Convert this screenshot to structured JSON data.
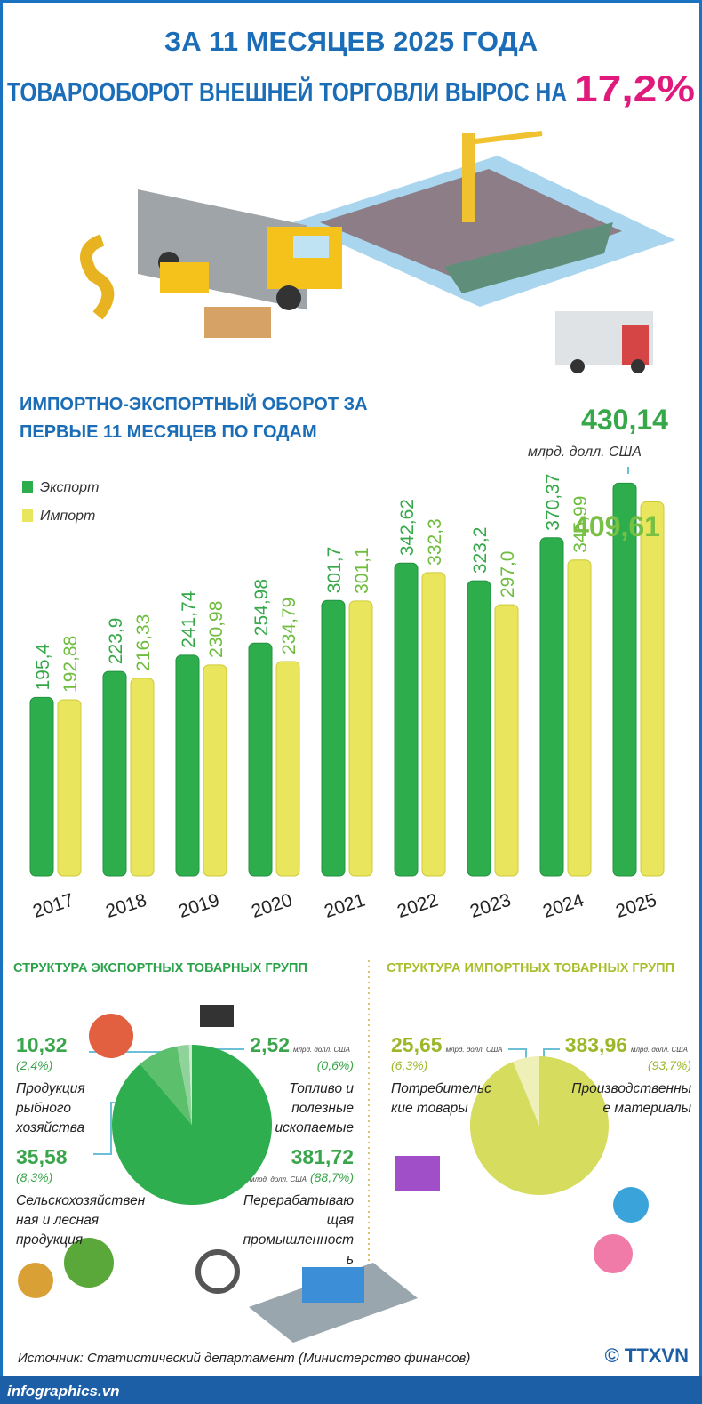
{
  "header": {
    "line1": "ЗА 11 МЕСЯЦЕВ 2025 ГОДА",
    "line2": "ТОВАРООБОРОТ ВНЕШНЕЙ ТОРГОВЛИ ВЫРОС НА",
    "highlight": "17,2%"
  },
  "chart_data": [
    {
      "type": "bar",
      "title": "ИМПОРТНО-ЭКСПОРТНЫЙ ОБОРОТ ЗА ПЕРВЫЕ 11 МЕСЯЦЕВ ПО ГОДАМ",
      "unit": "млрд. долл. США",
      "categories": [
        "2017",
        "2018",
        "2019",
        "2020",
        "2021",
        "2022",
        "2023",
        "2024",
        "2025"
      ],
      "series": [
        {
          "name": "Экспорт",
          "color": "#2ead4d",
          "values": [
            195.4,
            223.9,
            241.74,
            254.98,
            301.7,
            342.62,
            323.2,
            370.37,
            430.14
          ],
          "value_labels": [
            "195,4",
            "223,9",
            "241,74",
            "254,98",
            "301,7",
            "342,62",
            "323,2",
            "370,37",
            "430,14"
          ]
        },
        {
          "name": "Импорт",
          "color": "#e9e55c",
          "values": [
            192.88,
            216.33,
            230.98,
            234.79,
            301.1,
            332.3,
            297.0,
            345.99,
            409.61
          ],
          "value_labels": [
            "192,88",
            "216,33",
            "230,98",
            "234,79",
            "301,1",
            "332,3",
            "297,0",
            "345,99",
            "409,61"
          ]
        }
      ],
      "ylim": [
        0,
        450
      ]
    },
    {
      "type": "pie",
      "title": "СТРУКТУРА ЭКСПОРТНЫХ ТОВАРНЫХ ГРУПП",
      "unit": "млрд. долл. США",
      "categories": [
        "Перерабатывающая промышленность",
        "Сельскохозяйственная и лесная продукция",
        "Продукция рыбного хозяйства",
        "Топливо и полезные ископаемые"
      ],
      "values": [
        381.72,
        35.58,
        10.32,
        2.52
      ],
      "value_labels": [
        "381,72",
        "35,58",
        "10,32",
        "2,52"
      ],
      "percents": [
        88.7,
        8.3,
        2.4,
        0.6
      ],
      "percent_labels": [
        "(88,7%)",
        "(8,3%)",
        "(2,4%)",
        "(0,6%)"
      ],
      "unit_shown": [
        true,
        false,
        false,
        true
      ],
      "colors": [
        "#2fae50",
        "#5cbf6c",
        "#8fd29a",
        "#cdeccf"
      ]
    },
    {
      "type": "pie",
      "title": "СТРУКТУРА ИМПОРТНЫХ ТОВАРНЫХ ГРУПП",
      "unit": "млрд. долл. США",
      "categories": [
        "Производственные материалы",
        "Потребительские товары"
      ],
      "values": [
        383.96,
        25.65
      ],
      "value_labels": [
        "383,96",
        "25,65"
      ],
      "percents": [
        93.7,
        6.3
      ],
      "percent_labels": [
        "(93,7%)",
        "(6,3%)"
      ],
      "unit_shown": [
        true,
        true
      ],
      "colors": [
        "#d6dc5e",
        "#eef0b8"
      ]
    }
  ],
  "source": "Источник: Статистический департамент (Министерство финансов)",
  "site": "infographics.vn",
  "copyright": "© TTXVN"
}
